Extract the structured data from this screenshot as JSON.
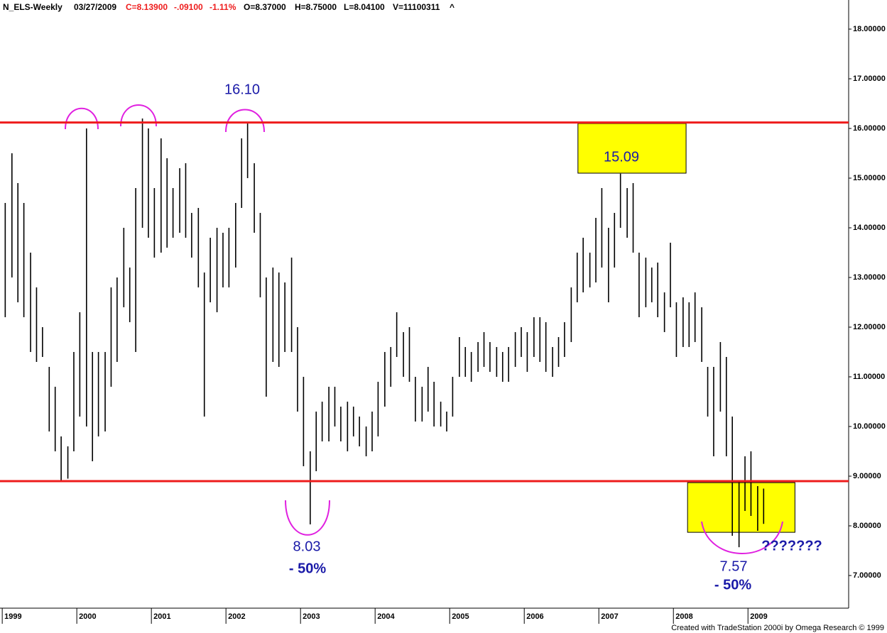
{
  "chart_data": {
    "type": "ohlc",
    "header": [
      "N_ELS-Weekly",
      "03/27/2009",
      "C=8.13900",
      "-.09100",
      "-1.11%",
      "O=8.37000",
      "H=8.75000",
      "L=8.04100",
      "V=11100311",
      "^"
    ],
    "footer": "Created with TradeStation 2000i by Omega Research © 1999",
    "color": "#000000",
    "x": [
      1999.04,
      1999.13,
      1999.21,
      1999.29,
      1999.38,
      1999.46,
      1999.54,
      1999.63,
      1999.71,
      1999.79,
      1999.88,
      1999.96,
      2000.04,
      2000.13,
      2000.21,
      2000.29,
      2000.38,
      2000.46,
      2000.54,
      2000.63,
      2000.71,
      2000.79,
      2000.88,
      2000.96,
      2001.04,
      2001.13,
      2001.21,
      2001.29,
      2001.38,
      2001.46,
      2001.54,
      2001.63,
      2001.71,
      2001.79,
      2001.88,
      2001.96,
      2002.04,
      2002.13,
      2002.21,
      2002.29,
      2002.38,
      2002.46,
      2002.54,
      2002.63,
      2002.71,
      2002.79,
      2002.88,
      2002.96,
      2003.04,
      2003.13,
      2003.21,
      2003.29,
      2003.38,
      2003.46,
      2003.54,
      2003.63,
      2003.71,
      2003.79,
      2003.88,
      2003.96,
      2004.04,
      2004.13,
      2004.21,
      2004.29,
      2004.38,
      2004.46,
      2004.54,
      2004.63,
      2004.71,
      2004.79,
      2004.88,
      2004.96,
      2005.04,
      2005.13,
      2005.21,
      2005.29,
      2005.38,
      2005.46,
      2005.54,
      2005.63,
      2005.71,
      2005.79,
      2005.88,
      2005.96,
      2006.04,
      2006.13,
      2006.21,
      2006.29,
      2006.38,
      2006.46,
      2006.54,
      2006.63,
      2006.71,
      2006.79,
      2006.88,
      2006.96,
      2007.04,
      2007.13,
      2007.21,
      2007.29,
      2007.38,
      2007.46,
      2007.54,
      2007.63,
      2007.71,
      2007.79,
      2007.88,
      2007.96,
      2008.04,
      2008.13,
      2008.21,
      2008.29,
      2008.38,
      2008.46,
      2008.54,
      2008.63,
      2008.71,
      2008.79,
      2008.88,
      2008.96,
      2009.04,
      2009.13,
      2009.21
    ],
    "high": [
      14.5,
      15.5,
      14.9,
      14.5,
      13.5,
      12.8,
      12,
      11.2,
      10.8,
      9.8,
      9.6,
      11.5,
      12.3,
      16,
      11.5,
      11.5,
      11.5,
      12.8,
      13,
      14,
      13.2,
      14.8,
      16.2,
      16,
      14.8,
      15.8,
      15.4,
      14.8,
      15.2,
      15.3,
      14.3,
      14.4,
      13.1,
      13.8,
      14,
      13.9,
      14,
      14.5,
      15.8,
      16.1,
      15.3,
      14.3,
      13,
      13.2,
      13.1,
      12.9,
      13.4,
      12,
      11,
      9.5,
      10.3,
      10.5,
      10.8,
      10.8,
      10.4,
      10.5,
      10.4,
      10.2,
      10,
      10.3,
      10.9,
      11.5,
      11.6,
      12.3,
      11.9,
      12,
      11,
      10.8,
      11.2,
      10.9,
      10.5,
      10.3,
      11,
      11.8,
      11.6,
      11.5,
      11.7,
      11.9,
      11.7,
      11.6,
      11.5,
      11.6,
      11.9,
      12,
      11.9,
      12.2,
      12.2,
      12.1,
      11.6,
      11.8,
      12.1,
      12.8,
      13.5,
      13.8,
      13.5,
      14.2,
      14.8,
      14,
      14.3,
      15.09,
      14.8,
      14.9,
      13.5,
      13.4,
      13.2,
      13.3,
      12.7,
      13.7,
      12.5,
      12.6,
      12.5,
      12.7,
      12.4,
      11.2,
      11.2,
      11.7,
      11.4,
      10.2,
      8.9,
      9.4,
      9.5,
      8.8,
      8.75
    ],
    "low": [
      12.2,
      13,
      12.5,
      12.2,
      11.5,
      11.3,
      11.4,
      9.9,
      9.5,
      8.9,
      8.95,
      9.5,
      10.2,
      10,
      9.3,
      9.8,
      9.9,
      10.8,
      11.3,
      12.4,
      12.1,
      11.5,
      14,
      13.8,
      13.4,
      13.5,
      13.6,
      13.8,
      13.9,
      13.8,
      13.4,
      12.8,
      10.2,
      12.5,
      12.3,
      12.8,
      12.8,
      13.2,
      14.4,
      15,
      13.9,
      12.6,
      10.6,
      11.3,
      11.2,
      11.5,
      11.5,
      10.3,
      9.2,
      8.03,
      9.1,
      9.7,
      9.7,
      10,
      9.7,
      9.5,
      9.8,
      9.6,
      9.4,
      9.5,
      9.8,
      10.4,
      10.8,
      11.4,
      11,
      10.9,
      10.1,
      10.1,
      10.3,
      10,
      10,
      9.9,
      10.2,
      11,
      11,
      10.9,
      11.1,
      11.2,
      11.1,
      11,
      10.9,
      10.9,
      11.2,
      11.4,
      11.1,
      11.4,
      11.3,
      11.1,
      11,
      11.2,
      11.4,
      11.7,
      12.5,
      12.7,
      12.8,
      12.9,
      13.2,
      12.5,
      13.2,
      14,
      13.8,
      13.5,
      12.2,
      12.4,
      12.5,
      12.2,
      11.9,
      12.4,
      11.4,
      11.6,
      11.6,
      11.7,
      11.3,
      10.2,
      9.4,
      10.3,
      9.4,
      7.8,
      7.57,
      8.3,
      8.2,
      7.9,
      8.04
    ],
    "xlim": [
      1998.97,
      2010.35
    ],
    "xticks": [
      1999,
      2000,
      2001,
      2002,
      2003,
      2004,
      2005,
      2006,
      2007,
      2008,
      2009
    ],
    "ylim": [
      6.343,
      18.586
    ],
    "yticks": [
      {
        "value": 7,
        "label": "7.00000"
      },
      {
        "value": 8,
        "label": "8.00000"
      },
      {
        "value": 9,
        "label": "9.00000"
      },
      {
        "value": 10,
        "label": "10.00000"
      },
      {
        "value": 11,
        "label": "11.00000"
      },
      {
        "value": 12,
        "label": "12.00000"
      },
      {
        "value": 13,
        "label": "13.00000"
      },
      {
        "value": 14,
        "label": "14.00000"
      },
      {
        "value": 15,
        "label": "15.00000"
      },
      {
        "value": 16,
        "label": "16.00000"
      },
      {
        "value": 17,
        "label": "17.00000"
      },
      {
        "value": 18,
        "label": "18.00000"
      }
    ],
    "hlines": [
      16.12,
      8.9
    ],
    "hline_color": "#ee1c1c",
    "zones": [
      {
        "x0": 2006.72,
        "x1": 2008.17,
        "y0": 15.1,
        "y1": 16.1
      },
      {
        "x0": 2008.19,
        "x1": 2009.63,
        "y0": 7.87,
        "y1": 8.87
      }
    ],
    "zone_color": "#ffff00",
    "annotations": [
      "16.10",
      "15.09",
      "8.03",
      "- 50%",
      "7.57",
      "- 50%",
      "???????"
    ]
  }
}
